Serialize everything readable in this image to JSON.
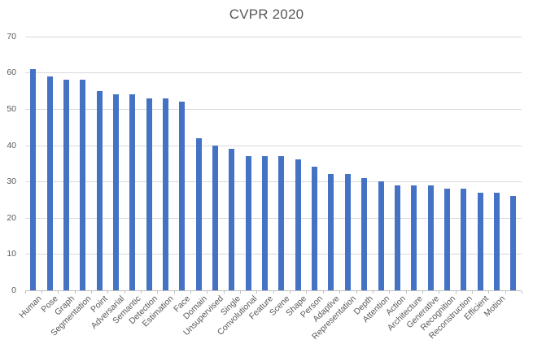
{
  "chart_data": {
    "type": "bar",
    "title": "CVPR 2020",
    "categories": [
      "Human",
      "Pose",
      "Graph",
      "Segmentation",
      "Point",
      "Adversarial",
      "Semantic",
      "Detection",
      "Estimation",
      "Face",
      "Domain",
      "Unsupervised",
      "Single",
      "Convolutional",
      "Feature",
      "Scene",
      "Shape",
      "Person",
      "Adaptive",
      "Representation",
      "Depth",
      "Attention",
      "Action",
      "Architecture",
      "Generative",
      "Recognition",
      "Reconstruction",
      "Efficient",
      "Motion",
      ""
    ],
    "values": [
      61,
      59,
      58,
      58,
      55,
      54,
      54,
      53,
      53,
      52,
      42,
      40,
      39,
      37,
      37,
      37,
      36,
      34,
      32,
      32,
      31,
      30,
      29,
      29,
      29,
      28,
      28,
      27,
      27,
      26
    ],
    "xlabel": "",
    "ylabel": "",
    "ylim": [
      0,
      70
    ],
    "yticks": [
      0,
      10,
      20,
      30,
      40,
      50,
      60,
      70
    ],
    "grid": true,
    "legend": "none",
    "colors": {
      "bar": "#4472C4",
      "gridline": "#D9D9D9",
      "axis": "#BFBFBF",
      "tick_label": "#595959",
      "title": "#595959",
      "background": "#FFFFFF"
    }
  }
}
